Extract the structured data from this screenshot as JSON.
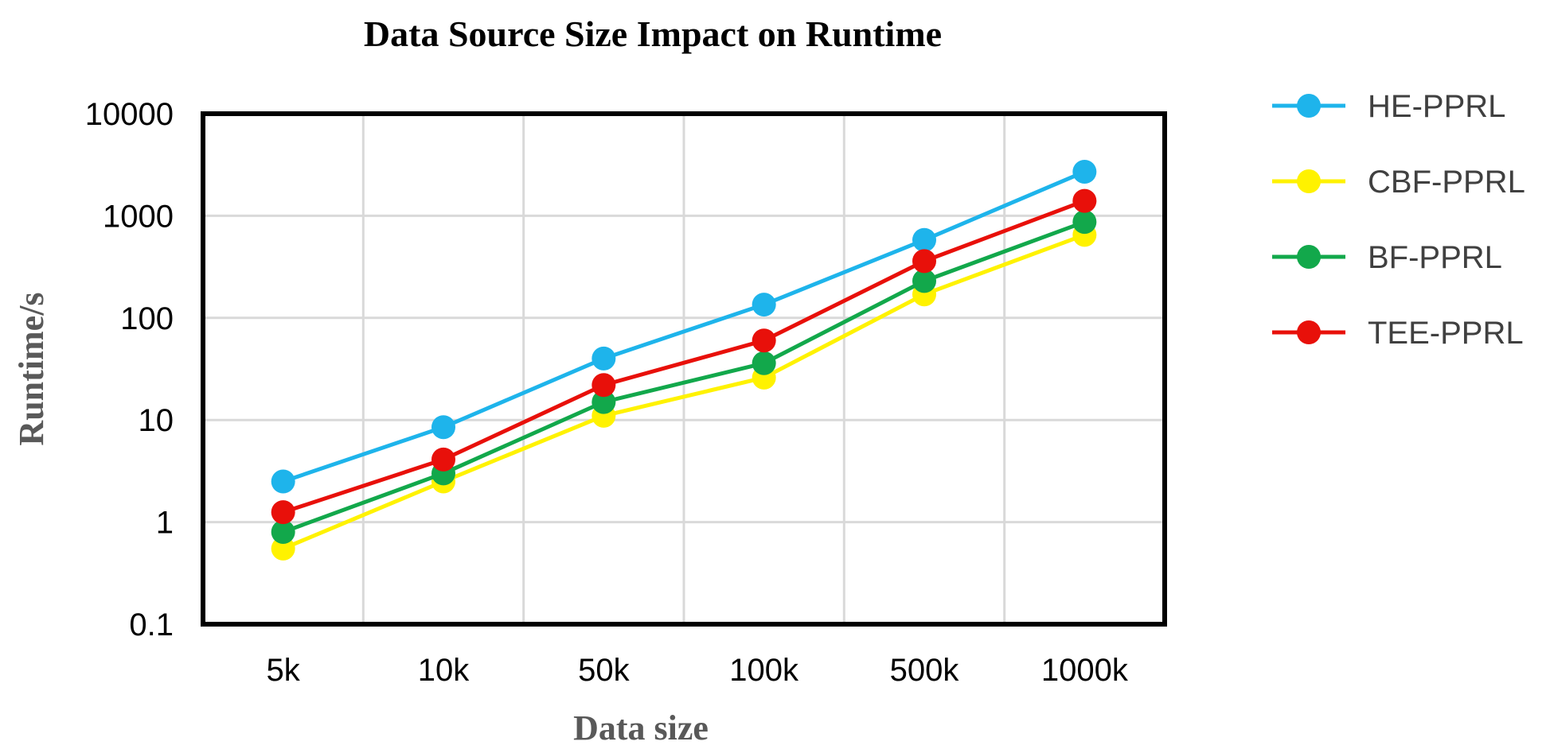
{
  "chart_data": {
    "type": "line",
    "title": "Data Source Size Impact on Runtime",
    "xlabel": "Data size",
    "ylabel": "Runtime/s",
    "categories": [
      "5k",
      "10k",
      "50k",
      "100k",
      "500k",
      "1000k"
    ],
    "y_scale": "log",
    "ylim": [
      0.1,
      10000
    ],
    "y_ticks": [
      {
        "value": 0.1,
        "label": "0.1"
      },
      {
        "value": 1,
        "label": "1"
      },
      {
        "value": 10,
        "label": "10"
      },
      {
        "value": 100,
        "label": "100"
      },
      {
        "value": 1000,
        "label": "1000"
      },
      {
        "value": 10000,
        "label": "10000"
      }
    ],
    "grid": true,
    "legend_position": "right",
    "series": [
      {
        "name": "HE-PPRL",
        "color": "#1EB4EB",
        "values": [
          2.5,
          8.5,
          40,
          135,
          580,
          2700
        ]
      },
      {
        "name": "CBF-PPRL",
        "color": "#FFF200",
        "values": [
          0.55,
          2.5,
          11,
          26,
          170,
          650
        ]
      },
      {
        "name": "BF-PPRL",
        "color": "#12A84B",
        "values": [
          0.8,
          3.0,
          15,
          36,
          230,
          870
        ]
      },
      {
        "name": "TEE-PPRL",
        "color": "#E8100A",
        "values": [
          1.25,
          4.1,
          22,
          60,
          360,
          1400
        ]
      }
    ]
  }
}
